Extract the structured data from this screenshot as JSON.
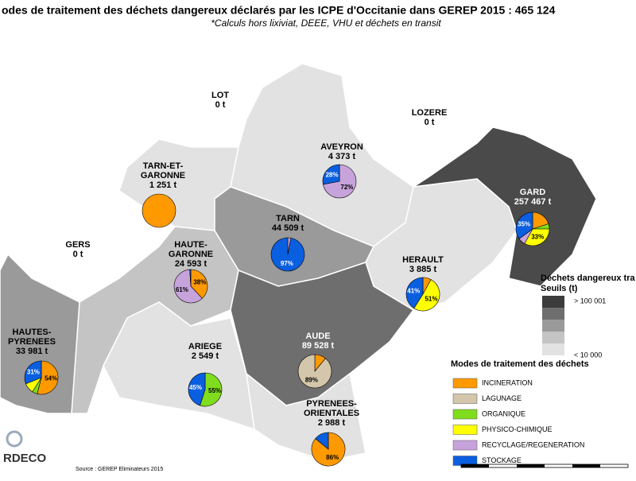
{
  "header": {
    "title": "odes de traitement des déchets dangereux déclarés par les ICPE d'Occitanie dans GEREP 2015 : 465 124",
    "subtitle": "*Calculs hors lixiviat, DEEE, VHU et déchets en transit"
  },
  "modes": {
    "title": "Modes de traitement des déchets",
    "items": [
      {
        "name": "INCINERATION",
        "color": "#ff9900"
      },
      {
        "name": "LAGUNAGE",
        "color": "#d4c6aa"
      },
      {
        "name": "ORGANIQUE",
        "color": "#80dd1e"
      },
      {
        "name": "PHYSICO-CHIMIQUE",
        "color": "#ffff00"
      },
      {
        "name": "RECYCLAGE/REGENERATION",
        "color": "#c7a3dc"
      },
      {
        "name": "STOCKAGE",
        "color": "#0a5ee0"
      }
    ]
  },
  "thresholds": {
    "title": "Déchets dangereux tra",
    "subtitle": "Seuils (t)",
    "high": "> 100 001",
    "low": "< 10 000",
    "colors": [
      "#3c3c3c",
      "#6e6e6e",
      "#9a9a9a",
      "#c4c4c4",
      "#e2e2e2"
    ]
  },
  "departments": [
    {
      "name": [
        "LOT"
      ],
      "tonnage": "0 t",
      "color": "#ffffff",
      "values": null,
      "value_labels": null
    },
    {
      "name": [
        "LOZERE"
      ],
      "tonnage": "0 t",
      "color": "#ffffff",
      "values": null,
      "value_labels": null
    },
    {
      "name": [
        "GERS"
      ],
      "tonnage": "0 t",
      "color": "#ffffff",
      "values": null,
      "value_labels": null
    },
    {
      "name": [
        "TARN-ET-",
        "GARONNE"
      ],
      "tonnage": "1 251 t",
      "color": "#e2e2e2",
      "values": [
        100,
        null,
        null,
        null,
        null,
        null
      ],
      "value_labels": [
        null,
        null,
        null,
        null,
        null,
        null
      ]
    },
    {
      "name": [
        "AVEYRON"
      ],
      "tonnage": "4 373 t",
      "color": "#e2e2e2",
      "values": [
        null,
        null,
        null,
        null,
        72,
        28
      ],
      "value_labels": [
        null,
        null,
        null,
        null,
        "72%",
        "28%"
      ]
    },
    {
      "name": [
        "TARN"
      ],
      "tonnage": "44 509 t",
      "color": "#9a9a9a",
      "values": [
        null,
        null,
        null,
        null,
        3,
        97
      ],
      "value_labels": [
        null,
        null,
        null,
        null,
        null,
        "97%"
      ]
    },
    {
      "name": [
        "GARD"
      ],
      "tonnage": "257 467 t",
      "color": "#4a4a4a",
      "values": [
        20,
        null,
        5,
        33,
        7,
        35
      ],
      "value_labels": [
        null,
        null,
        null,
        "33%",
        null,
        "35%"
      ]
    },
    {
      "name": [
        "HAUTE-",
        "GARONNE"
      ],
      "tonnage": "24 593 t",
      "color": "#c4c4c4",
      "values": [
        38,
        null,
        null,
        null,
        61,
        1
      ],
      "value_labels": [
        "38%",
        null,
        null,
        null,
        "61%",
        null
      ]
    },
    {
      "name": [
        "HERAULT"
      ],
      "tonnage": "3 885 t",
      "color": "#e2e2e2",
      "values": [
        8,
        null,
        null,
        51,
        null,
        41
      ],
      "value_labels": [
        null,
        null,
        null,
        "51%",
        null,
        "41%"
      ]
    },
    {
      "name": [
        "HAUTES-",
        "PYRENEES"
      ],
      "tonnage": "33 981 t",
      "color": "#9a9a9a",
      "values": [
        54,
        null,
        5,
        10,
        null,
        31
      ],
      "value_labels": [
        "54%",
        null,
        null,
        null,
        null,
        "31%"
      ]
    },
    {
      "name": [
        "ARIEGE"
      ],
      "tonnage": "2 549 t",
      "color": "#e2e2e2",
      "values": [
        null,
        null,
        55,
        null,
        null,
        45
      ],
      "value_labels": [
        null,
        null,
        "55%",
        null,
        null,
        "45%"
      ]
    },
    {
      "name": [
        "AUDE"
      ],
      "tonnage": "89 528 t",
      "color": "#6e6e6e",
      "values": [
        11,
        89,
        null,
        null,
        null,
        null
      ],
      "value_labels": [
        null,
        "89%",
        null,
        null,
        null,
        null
      ]
    },
    {
      "name": [
        "PYRENEES-",
        "ORIENTALES"
      ],
      "tonnage": "2 988 t",
      "color": "#e2e2e2",
      "values": [
        86,
        null,
        null,
        null,
        null,
        14
      ],
      "value_labels": [
        "86%",
        null,
        null,
        null,
        null,
        null
      ]
    }
  ],
  "footer": {
    "source": "Source : GEREP Eliminateurs 2015",
    "logo": "RDECO"
  }
}
